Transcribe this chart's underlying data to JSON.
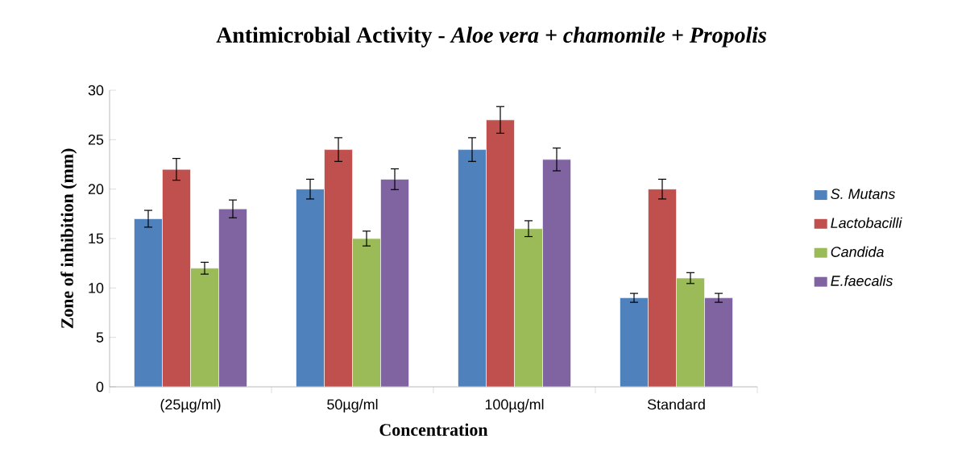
{
  "chart_data": {
    "type": "bar",
    "title": "Antimicrobial Activity - *Aloe vera + chamomile + Propolis*",
    "xlabel": "Concentration",
    "ylabel": "Zone of inhibition (mm)",
    "categories": [
      "(25µg/ml)",
      "50µg/ml",
      "100µg/ml",
      "Standard"
    ],
    "series": [
      {
        "name": "S. Mutans",
        "color": "#4f81bd",
        "values": [
          17,
          20,
          24,
          9
        ],
        "errors": [
          0.85,
          1.0,
          1.2,
          0.45
        ]
      },
      {
        "name": "Lactobacilli",
        "color": "#c0504d",
        "values": [
          22,
          24,
          27,
          20
        ],
        "errors": [
          1.1,
          1.2,
          1.35,
          1.0
        ]
      },
      {
        "name": "Candida",
        "color": "#9bbb59",
        "values": [
          12,
          15,
          16,
          11
        ],
        "errors": [
          0.6,
          0.75,
          0.8,
          0.55
        ]
      },
      {
        "name": "E.faecalis",
        "color": "#8064a2",
        "values": [
          18,
          21,
          23,
          9
        ],
        "errors": [
          0.9,
          1.05,
          1.15,
          0.45
        ]
      }
    ],
    "ylim": [
      0,
      30
    ],
    "yticks": [
      0,
      5,
      10,
      15,
      20,
      25,
      30
    ],
    "legend": "right"
  }
}
